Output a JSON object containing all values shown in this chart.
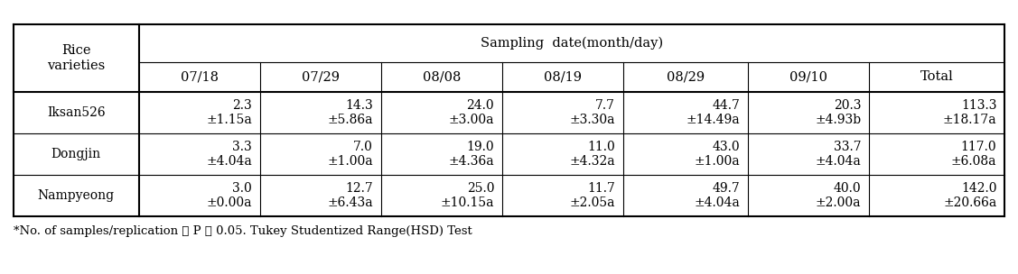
{
  "header_row1_col0": "Rice\nvarieties",
  "header_row1_merged": "Sampling  date(month/day)",
  "date_labels": [
    "07/18",
    "07/29",
    "08/08",
    "08/19",
    "08/29",
    "09/10",
    "Total"
  ],
  "rows": [
    {
      "variety": "Iksan526",
      "values": [
        "2.3\n±1.15a",
        "14.3\n±5.86a",
        "24.0\n±3.00a",
        "7.7\n±3.30a",
        "44.7\n±14.49a",
        "20.3\n±4.93b",
        "113.3\n±18.17a"
      ]
    },
    {
      "variety": "Dongjin",
      "values": [
        "3.3\n±4.04a",
        "7.0\n±1.00a",
        "19.0\n±4.36a",
        "11.0\n±4.32a",
        "43.0\n±1.00a",
        "33.7\n±4.04a",
        "117.0\n±6.08a"
      ]
    },
    {
      "variety": "Nampyeong",
      "values": [
        "3.0\n±0.00a",
        "12.7\n±6.43a",
        "25.0\n±10.15a",
        "11.7\n±2.05a",
        "49.7\n±4.04a",
        "40.0\n±2.00a",
        "142.0\n±20.66a"
      ]
    }
  ],
  "footnote": "*No. of samples/replication ： P ＜ 0.05. Tukey Studentized Range(HSD) Test",
  "background": "#ffffff",
  "lw_outer": 1.5,
  "lw_inner": 0.8,
  "fontsize_header": 10.5,
  "fontsize_data": 10.0,
  "fontsize_footnote": 9.5
}
